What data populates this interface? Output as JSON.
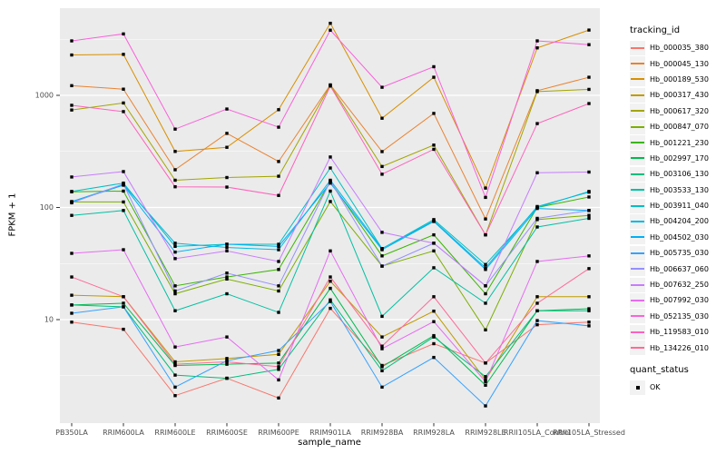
{
  "chart_data": {
    "type": "line",
    "title": "",
    "xlabel": "sample_name",
    "ylabel": "FPKM + 1",
    "y_scale": "log10",
    "y_major_ticks": [
      10,
      100,
      1000
    ],
    "y_minor_ticks": [
      3.162,
      31.623,
      316.228,
      3162.278
    ],
    "ylim": [
      1.2,
      5900
    ],
    "grid": "white major+minor on grey panel",
    "legend_position": "right",
    "legend_title": "tracking_id",
    "quant_status": {
      "title": "quant_status",
      "items": [
        "OK"
      ]
    },
    "marker": {
      "shape": "filled-square",
      "color": "#000000"
    },
    "x_categories": [
      "PB350LA",
      "RRIM600LA",
      "RRIM600LE",
      "RRIM600SE",
      "RRIM600PE",
      "RRIM901LA",
      "RRIM928BA",
      "RRIM928LA",
      "RRIM928LE",
      "RRII105LA_Control",
      "RRII105LA_Stressed"
    ],
    "series": [
      {
        "id": "Hb_000035_380",
        "color": "#F8766D",
        "values": [
          9.5,
          8.2,
          2.1,
          3.0,
          2.0,
          12.6,
          3.9,
          6.1,
          4.1,
          9.0,
          9.5
        ]
      },
      {
        "id": "Hb_000045_130",
        "color": "#EA8331",
        "values": [
          1220,
          1135,
          217,
          458,
          257,
          1240,
          315,
          690,
          79,
          1100,
          1450
        ]
      },
      {
        "id": "Hb_000189_530",
        "color": "#D89000",
        "values": [
          2290,
          2320,
          316,
          344,
          745,
          4390,
          625,
          1450,
          149,
          2650,
          3820
        ]
      },
      {
        "id": "Hb_000317_430",
        "color": "#C09B00",
        "values": [
          16.5,
          16,
          4.2,
          4.5,
          4.9,
          22,
          7.0,
          11.9,
          2.9,
          16,
          16
        ]
      },
      {
        "id": "Hb_000617_320",
        "color": "#A3A500",
        "values": [
          740,
          855,
          175,
          185,
          190,
          1230,
          232,
          360,
          57,
          1080,
          1130
        ]
      },
      {
        "id": "Hb_000847_070",
        "color": "#7CAE00",
        "values": [
          112,
          112,
          17,
          23,
          18,
          113,
          30,
          41,
          8.1,
          78,
          85
        ]
      },
      {
        "id": "Hb_001221_230",
        "color": "#39B600",
        "values": [
          138,
          140,
          20,
          24,
          28,
          170,
          37,
          57,
          17,
          100,
          124
        ]
      },
      {
        "id": "Hb_002997_170",
        "color": "#00BB4E",
        "values": [
          13.5,
          14,
          3.9,
          4.0,
          4.1,
          19,
          3.8,
          7.2,
          2.6,
          12,
          12.5
        ]
      },
      {
        "id": "Hb_003106_130",
        "color": "#00BF7D",
        "values": [
          13.5,
          13,
          3.2,
          3.0,
          3.6,
          15,
          3.5,
          7.0,
          3.1,
          12,
          12
        ]
      },
      {
        "id": "Hb_003533_130",
        "color": "#00C1A3",
        "values": [
          85,
          94,
          12,
          17,
          11.6,
          140,
          10.7,
          29,
          14,
          67,
          80
        ]
      },
      {
        "id": "Hb_003911_040",
        "color": "#00BFC4",
        "values": [
          139,
          165,
          45,
          47,
          47,
          225,
          43,
          78,
          31,
          100,
          139
        ]
      },
      {
        "id": "Hb_004204_200",
        "color": "#00BAE0",
        "values": [
          113,
          160,
          48,
          44,
          42,
          175,
          43,
          76,
          29,
          102,
          137
        ]
      },
      {
        "id": "Hb_004502_030",
        "color": "#00B0F6",
        "values": [
          112,
          158,
          40,
          47,
          45,
          165,
          42,
          75,
          28,
          98,
          94
        ]
      },
      {
        "id": "Hb_005735_030",
        "color": "#35A2FF",
        "values": [
          11.4,
          13,
          2.5,
          4.3,
          5.3,
          14.5,
          2.5,
          4.6,
          1.7,
          9.8,
          8.8
        ]
      },
      {
        "id": "Hb_006637_060",
        "color": "#9590FF",
        "values": [
          110,
          162,
          18,
          26,
          20,
          172,
          30,
          48,
          20,
          80,
          94
        ]
      },
      {
        "id": "Hb_007632_250",
        "color": "#C77CFF",
        "values": [
          187,
          209,
          35,
          41,
          33,
          282,
          60,
          48,
          20,
          204,
          207
        ]
      },
      {
        "id": "Hb_007992_030",
        "color": "#E76BF3",
        "values": [
          39,
          42,
          5.7,
          7.0,
          2.9,
          41,
          5.5,
          9.6,
          2.8,
          33,
          37
        ]
      },
      {
        "id": "Hb_052135_030",
        "color": "#FA62DB",
        "values": [
          3060,
          3530,
          500,
          755,
          520,
          3810,
          1180,
          1800,
          123,
          3060,
          2830
        ]
      },
      {
        "id": "Hb_119583_010",
        "color": "#FF62BC",
        "values": [
          815,
          716,
          153,
          152,
          128,
          1210,
          198,
          330,
          57,
          560,
          845
        ]
      },
      {
        "id": "Hb_134226_010",
        "color": "#FF6A98",
        "values": [
          24,
          16,
          4.0,
          4.2,
          3.8,
          24,
          5.8,
          16,
          4.1,
          14,
          28.5
        ]
      }
    ]
  },
  "colors": {
    "panel_bg": "#EBEBEB",
    "grid": "#FFFFFF",
    "tick_label": "#4D4D4D",
    "tick_mark": "#333333",
    "legend_key_bg": "#F2F2F2",
    "point": "#000000"
  }
}
